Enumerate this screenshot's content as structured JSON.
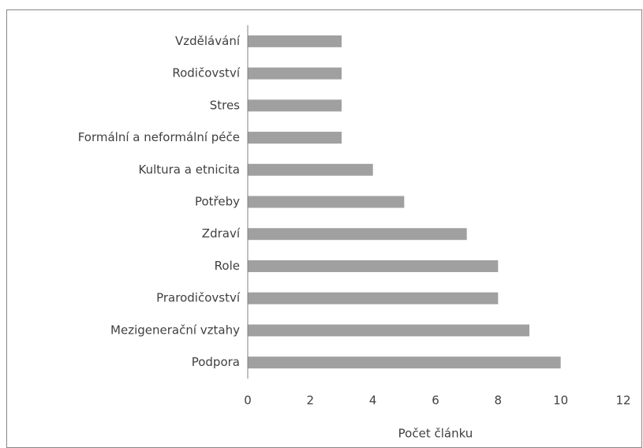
{
  "chart_data": {
    "type": "barh",
    "categories": [
      "Vzdělávání",
      "Rodičovství",
      "Stres",
      "Formální a neformální péče",
      "Kultura a etnicita",
      "Potřeby",
      "Zdraví",
      "Role",
      "Prarodičovství",
      "Mezigenerační vztahy",
      "Podpora"
    ],
    "values": [
      3,
      3,
      3,
      3,
      4,
      5,
      7,
      8,
      8,
      9,
      10
    ],
    "color": "#a0a0a0",
    "xlabel": "Počet článku",
    "xlim": [
      0,
      12
    ],
    "xticks": [
      0,
      2,
      4,
      6,
      8,
      10,
      12
    ],
    "grid": false
  }
}
